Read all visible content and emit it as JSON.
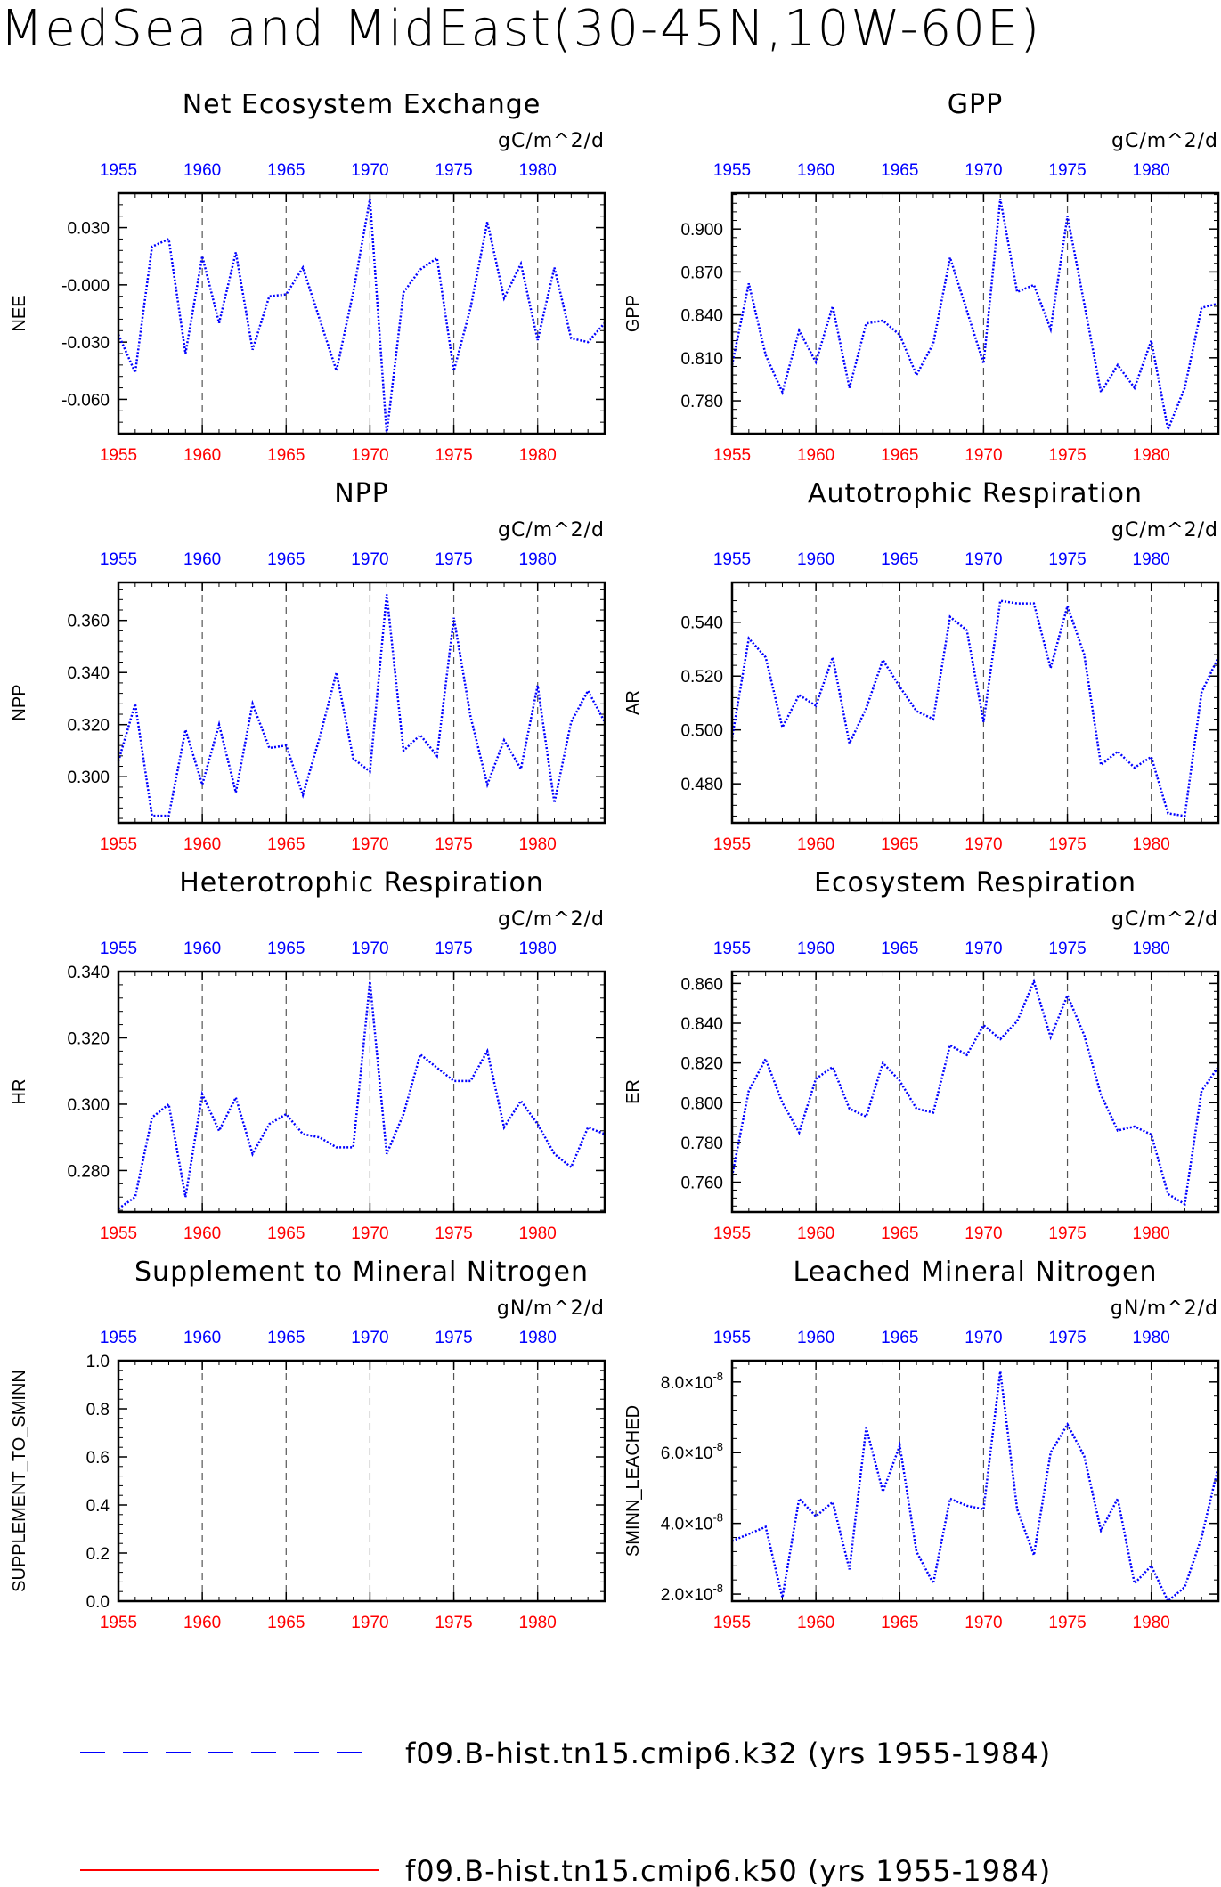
{
  "title": "MedSea and MidEast(30-45N,10W-60E)",
  "legend": [
    {
      "label": "f09.B-hist.tn15.cmip6.k32 (yrs 1955-1984)",
      "color": "#0000ff",
      "style": "dashed"
    },
    {
      "label": "f09.B-hist.tn15.cmip6.k50 (yrs 1955-1984)",
      "color": "#ff0000",
      "style": "solid"
    }
  ],
  "chart_data": [
    {
      "type": "line",
      "title": "Net Ecosystem Exchange",
      "units": "gC/m^2/d",
      "ylabel": "NEE",
      "xlim": [
        1955,
        1984
      ],
      "x_ticks": [
        "1955",
        "1960",
        "1965",
        "1970",
        "1975",
        "1980"
      ],
      "ylim": [
        -0.078,
        0.048
      ],
      "y_ticks": [
        {
          "value": -0.06,
          "label": "-0.060"
        },
        {
          "value": -0.03,
          "label": "-0.030"
        },
        {
          "value": 0,
          "label": "-0.000"
        },
        {
          "value": 0.03,
          "label": "0.030"
        }
      ],
      "series": [
        {
          "color": "#0000ff",
          "style": "dotted",
          "x": [
            1955,
            1956,
            1957,
            1958,
            1959,
            1960,
            1961,
            1962,
            1963,
            1964,
            1965,
            1966,
            1967,
            1968,
            1969,
            1970,
            1971,
            1972,
            1973,
            1974,
            1975,
            1976,
            1977,
            1978,
            1979,
            1980,
            1981,
            1982,
            1983,
            1984
          ],
          "values": [
            -0.026,
            -0.046,
            0.02,
            0.024,
            -0.036,
            0.015,
            -0.02,
            0.017,
            -0.034,
            -0.006,
            -0.005,
            0.009,
            -0.018,
            -0.045,
            -0.004,
            0.045,
            -0.078,
            -0.004,
            0.008,
            0.014,
            -0.045,
            -0.012,
            0.033,
            -0.007,
            0.011,
            -0.029,
            0.009,
            -0.028,
            -0.03,
            -0.02
          ]
        }
      ]
    },
    {
      "type": "line",
      "title": "GPP",
      "units": "gC/m^2/d",
      "ylabel": "GPP",
      "xlim": [
        1955,
        1984
      ],
      "x_ticks": [
        "1955",
        "1960",
        "1965",
        "1970",
        "1975",
        "1980"
      ],
      "ylim": [
        0.757,
        0.925
      ],
      "y_ticks": [
        {
          "value": 0.78,
          "label": "0.780"
        },
        {
          "value": 0.81,
          "label": "0.810"
        },
        {
          "value": 0.84,
          "label": "0.840"
        },
        {
          "value": 0.87,
          "label": "0.870"
        },
        {
          "value": 0.9,
          "label": "0.900"
        }
      ],
      "series": [
        {
          "color": "#0000ff",
          "style": "dotted",
          "x": [
            1955,
            1956,
            1957,
            1958,
            1959,
            1960,
            1961,
            1962,
            1963,
            1964,
            1965,
            1966,
            1967,
            1968,
            1969,
            1970,
            1971,
            1972,
            1973,
            1974,
            1975,
            1976,
            1977,
            1978,
            1979,
            1980,
            1981,
            1982,
            1983,
            1984
          ],
          "values": [
            0.805,
            0.862,
            0.812,
            0.786,
            0.829,
            0.807,
            0.846,
            0.789,
            0.834,
            0.836,
            0.826,
            0.798,
            0.82,
            0.88,
            0.843,
            0.806,
            0.921,
            0.856,
            0.861,
            0.83,
            0.909,
            0.848,
            0.786,
            0.805,
            0.789,
            0.822,
            0.76,
            0.789,
            0.845,
            0.848
          ]
        }
      ]
    },
    {
      "type": "line",
      "title": "NPP",
      "units": "gC/m^2/d",
      "ylabel": "NPP",
      "xlim": [
        1955,
        1984
      ],
      "x_ticks": [
        "1955",
        "1960",
        "1965",
        "1970",
        "1975",
        "1980"
      ],
      "ylim": [
        0.2823,
        0.3746
      ],
      "y_ticks": [
        {
          "value": 0.3,
          "label": "0.300"
        },
        {
          "value": 0.32,
          "label": "0.320"
        },
        {
          "value": 0.34,
          "label": "0.340"
        },
        {
          "value": 0.36,
          "label": "0.360"
        }
      ],
      "series": [
        {
          "color": "#0000ff",
          "style": "dotted",
          "x": [
            1955,
            1956,
            1957,
            1958,
            1959,
            1960,
            1961,
            1962,
            1963,
            1964,
            1965,
            1966,
            1967,
            1968,
            1969,
            1970,
            1971,
            1972,
            1973,
            1974,
            1975,
            1976,
            1977,
            1978,
            1979,
            1980,
            1981,
            1982,
            1983,
            1984
          ],
          "values": [
            0.306,
            0.328,
            0.285,
            0.285,
            0.318,
            0.297,
            0.32,
            0.294,
            0.328,
            0.311,
            0.312,
            0.293,
            0.315,
            0.34,
            0.307,
            0.302,
            0.37,
            0.31,
            0.316,
            0.308,
            0.361,
            0.323,
            0.297,
            0.314,
            0.303,
            0.335,
            0.29,
            0.321,
            0.333,
            0.321
          ]
        }
      ]
    },
    {
      "type": "line",
      "title": "Autotrophic Respiration",
      "units": "gC/m^2/d",
      "ylabel": "AR",
      "xlim": [
        1955,
        1984
      ],
      "x_ticks": [
        "1955",
        "1960",
        "1965",
        "1970",
        "1975",
        "1980"
      ],
      "ylim": [
        0.4655,
        0.5548
      ],
      "y_ticks": [
        {
          "value": 0.48,
          "label": "0.480"
        },
        {
          "value": 0.5,
          "label": "0.500"
        },
        {
          "value": 0.52,
          "label": "0.520"
        },
        {
          "value": 0.54,
          "label": "0.540"
        }
      ],
      "series": [
        {
          "color": "#0000ff",
          "style": "dotted",
          "x": [
            1955,
            1956,
            1957,
            1958,
            1959,
            1960,
            1961,
            1962,
            1963,
            1964,
            1965,
            1966,
            1967,
            1968,
            1969,
            1970,
            1971,
            1972,
            1973,
            1974,
            1975,
            1976,
            1977,
            1978,
            1979,
            1980,
            1981,
            1982,
            1983,
            1984
          ],
          "values": [
            0.497,
            0.534,
            0.527,
            0.501,
            0.513,
            0.509,
            0.527,
            0.495,
            0.508,
            0.526,
            0.516,
            0.507,
            0.504,
            0.542,
            0.537,
            0.503,
            0.548,
            0.547,
            0.547,
            0.523,
            0.546,
            0.528,
            0.487,
            0.492,
            0.486,
            0.49,
            0.469,
            0.468,
            0.514,
            0.527
          ]
        }
      ]
    },
    {
      "type": "line",
      "title": "Heterotrophic Respiration",
      "units": "gC/m^2/d",
      "ylabel": "HR",
      "xlim": [
        1955,
        1984
      ],
      "x_ticks": [
        "1955",
        "1960",
        "1965",
        "1970",
        "1975",
        "1980"
      ],
      "ylim": [
        0.2675,
        0.34
      ],
      "y_ticks": [
        {
          "value": 0.28,
          "label": "0.280"
        },
        {
          "value": 0.3,
          "label": "0.300"
        },
        {
          "value": 0.32,
          "label": "0.320"
        },
        {
          "value": 0.34,
          "label": "0.340"
        }
      ],
      "series": [
        {
          "color": "#0000ff",
          "style": "dotted",
          "x": [
            1955,
            1956,
            1957,
            1958,
            1959,
            1960,
            1961,
            1962,
            1963,
            1964,
            1965,
            1966,
            1967,
            1968,
            1969,
            1970,
            1971,
            1972,
            1973,
            1974,
            1975,
            1976,
            1977,
            1978,
            1979,
            1980,
            1981,
            1982,
            1983,
            1984
          ],
          "values": [
            0.2685,
            0.272,
            0.296,
            0.3,
            0.272,
            0.303,
            0.292,
            0.302,
            0.285,
            0.294,
            0.297,
            0.291,
            0.29,
            0.287,
            0.287,
            0.337,
            0.285,
            0.297,
            0.315,
            0.311,
            0.307,
            0.307,
            0.316,
            0.293,
            0.301,
            0.294,
            0.285,
            0.281,
            0.293,
            0.291
          ]
        }
      ]
    },
    {
      "type": "line",
      "title": "Ecosystem Respiration",
      "units": "gC/m^2/d",
      "ylabel": "ER",
      "xlim": [
        1955,
        1984
      ],
      "x_ticks": [
        "1955",
        "1960",
        "1965",
        "1970",
        "1975",
        "1980"
      ],
      "ylim": [
        0.745,
        0.866
      ],
      "y_ticks": [
        {
          "value": 0.76,
          "label": "0.760"
        },
        {
          "value": 0.78,
          "label": "0.780"
        },
        {
          "value": 0.8,
          "label": "0.800"
        },
        {
          "value": 0.82,
          "label": "0.820"
        },
        {
          "value": 0.84,
          "label": "0.840"
        },
        {
          "value": 0.86,
          "label": "0.860"
        }
      ],
      "series": [
        {
          "color": "#0000ff",
          "style": "dotted",
          "x": [
            1955,
            1956,
            1957,
            1958,
            1959,
            1960,
            1961,
            1962,
            1963,
            1964,
            1965,
            1966,
            1967,
            1968,
            1969,
            1970,
            1971,
            1972,
            1973,
            1974,
            1975,
            1976,
            1977,
            1978,
            1979,
            1980,
            1981,
            1982,
            1983,
            1984
          ],
          "values": [
            0.763,
            0.806,
            0.822,
            0.8,
            0.785,
            0.812,
            0.818,
            0.797,
            0.793,
            0.82,
            0.811,
            0.797,
            0.795,
            0.829,
            0.824,
            0.839,
            0.832,
            0.841,
            0.861,
            0.833,
            0.854,
            0.834,
            0.804,
            0.786,
            0.788,
            0.784,
            0.754,
            0.749,
            0.806,
            0.818
          ]
        }
      ]
    },
    {
      "type": "line",
      "title": "Supplement to Mineral Nitrogen",
      "units": "gN/m^2/d",
      "ylabel": "SUPPLEMENT_TO_SMINN",
      "xlim": [
        1955,
        1984
      ],
      "x_ticks": [
        "1955",
        "1960",
        "1965",
        "1970",
        "1975",
        "1980"
      ],
      "ylim": [
        0,
        1
      ],
      "y_ticks": [
        {
          "value": 0,
          "label": "0.0"
        },
        {
          "value": 0.2,
          "label": "0.2"
        },
        {
          "value": 0.4,
          "label": "0.4"
        },
        {
          "value": 0.6,
          "label": "0.6"
        },
        {
          "value": 0.8,
          "label": "0.8"
        },
        {
          "value": 1,
          "label": "1.0"
        }
      ],
      "series": []
    },
    {
      "type": "line",
      "title": "Leached Mineral Nitrogen",
      "units": "gN/m^2/d",
      "ylabel": "SMINN_LEACHED",
      "xlim": [
        1955,
        1984
      ],
      "x_ticks": [
        "1955",
        "1960",
        "1965",
        "1970",
        "1975",
        "1980"
      ],
      "ylim": [
        1.8e-08,
        8.6e-08
      ],
      "y_ticks": [
        {
          "value": 2e-08,
          "label": "2.0×10",
          "exp": "-8"
        },
        {
          "value": 4e-08,
          "label": "4.0×10",
          "exp": "-8"
        },
        {
          "value": 6e-08,
          "label": "6.0×10",
          "exp": "-8"
        },
        {
          "value": 8e-08,
          "label": "8.0×10",
          "exp": "-8"
        }
      ],
      "series": [
        {
          "color": "#0000ff",
          "style": "dotted",
          "x": [
            1955,
            1956,
            1957,
            1958,
            1959,
            1960,
            1961,
            1962,
            1963,
            1964,
            1965,
            1966,
            1967,
            1968,
            1969,
            1970,
            1971,
            1972,
            1973,
            1974,
            1975,
            1976,
            1977,
            1978,
            1979,
            1980,
            1981,
            1982,
            1983,
            1984
          ],
          "values": [
            3.5e-08,
            3.7e-08,
            3.9e-08,
            1.9e-08,
            4.7e-08,
            4.2e-08,
            4.6e-08,
            2.7e-08,
            6.7e-08,
            4.9e-08,
            6.2e-08,
            3.2e-08,
            2.3e-08,
            4.7e-08,
            4.5e-08,
            4.4e-08,
            8.3e-08,
            4.4e-08,
            3.1e-08,
            6e-08,
            6.8e-08,
            5.9e-08,
            3.8e-08,
            4.7e-08,
            2.3e-08,
            2.8e-08,
            1.8e-08,
            2.2e-08,
            3.6e-08,
            5.6e-08
          ]
        }
      ]
    }
  ]
}
